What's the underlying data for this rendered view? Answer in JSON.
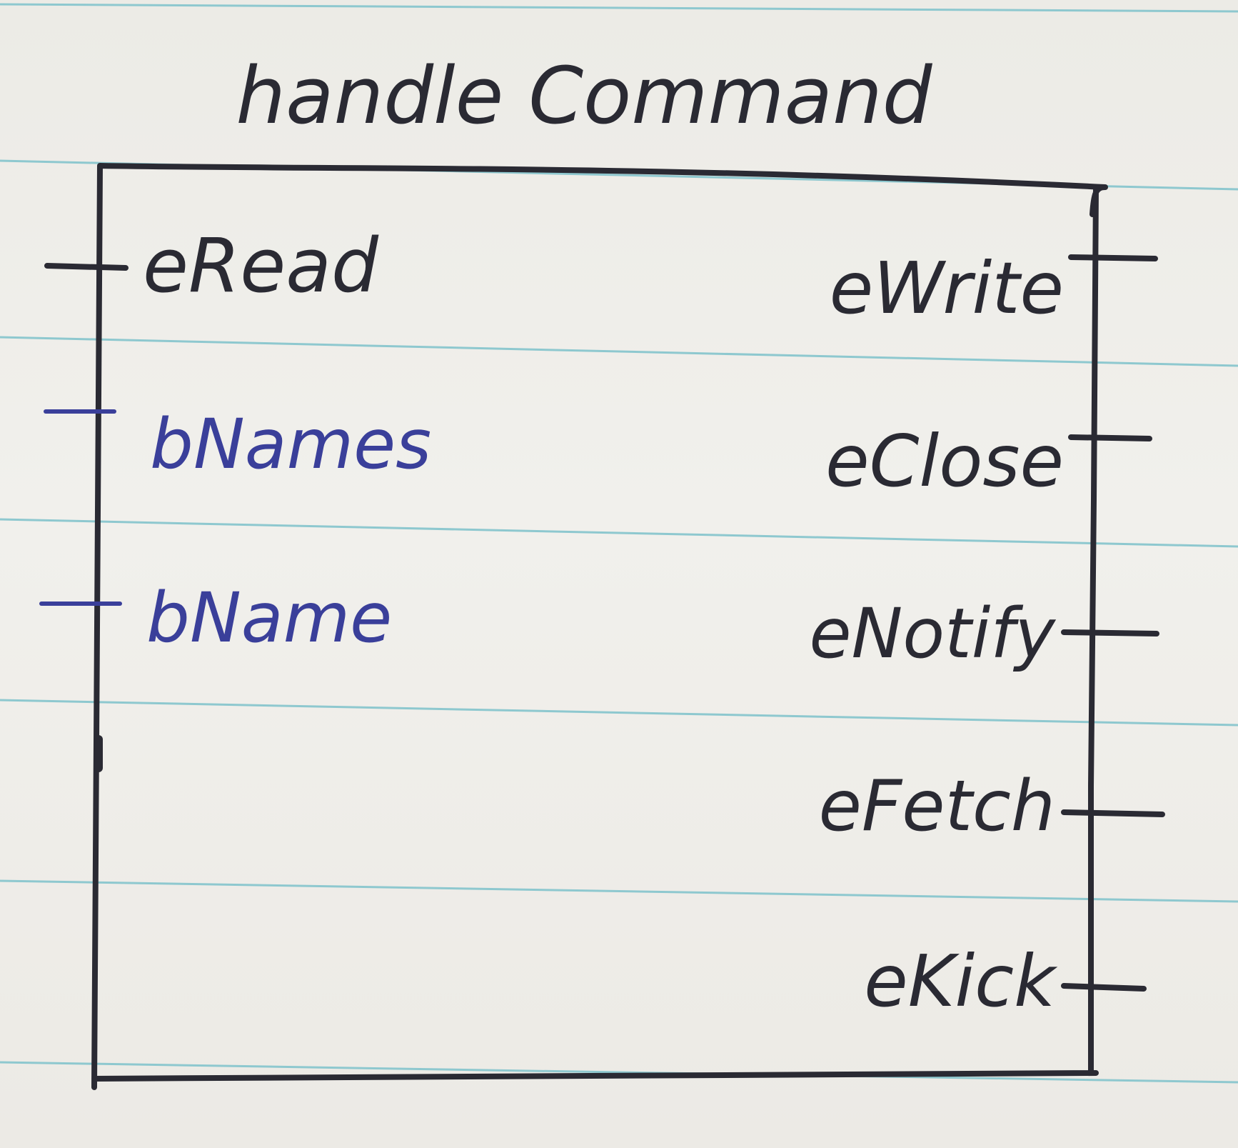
{
  "diagram": {
    "title": "handle Command",
    "inputs": [
      {
        "label": "eRead"
      },
      {
        "label": "bNames"
      },
      {
        "label": "bName"
      }
    ],
    "outputs": [
      {
        "label": "eWrite"
      },
      {
        "label": "eClose"
      },
      {
        "label": "eNotify"
      },
      {
        "label": "eFetch"
      },
      {
        "label": "eKick"
      }
    ],
    "colors": {
      "ink_black": "#2a2a33",
      "ink_blue": "#3a3f9a",
      "rule_line": "#8ec8cf",
      "paper": "#efeeea"
    }
  }
}
